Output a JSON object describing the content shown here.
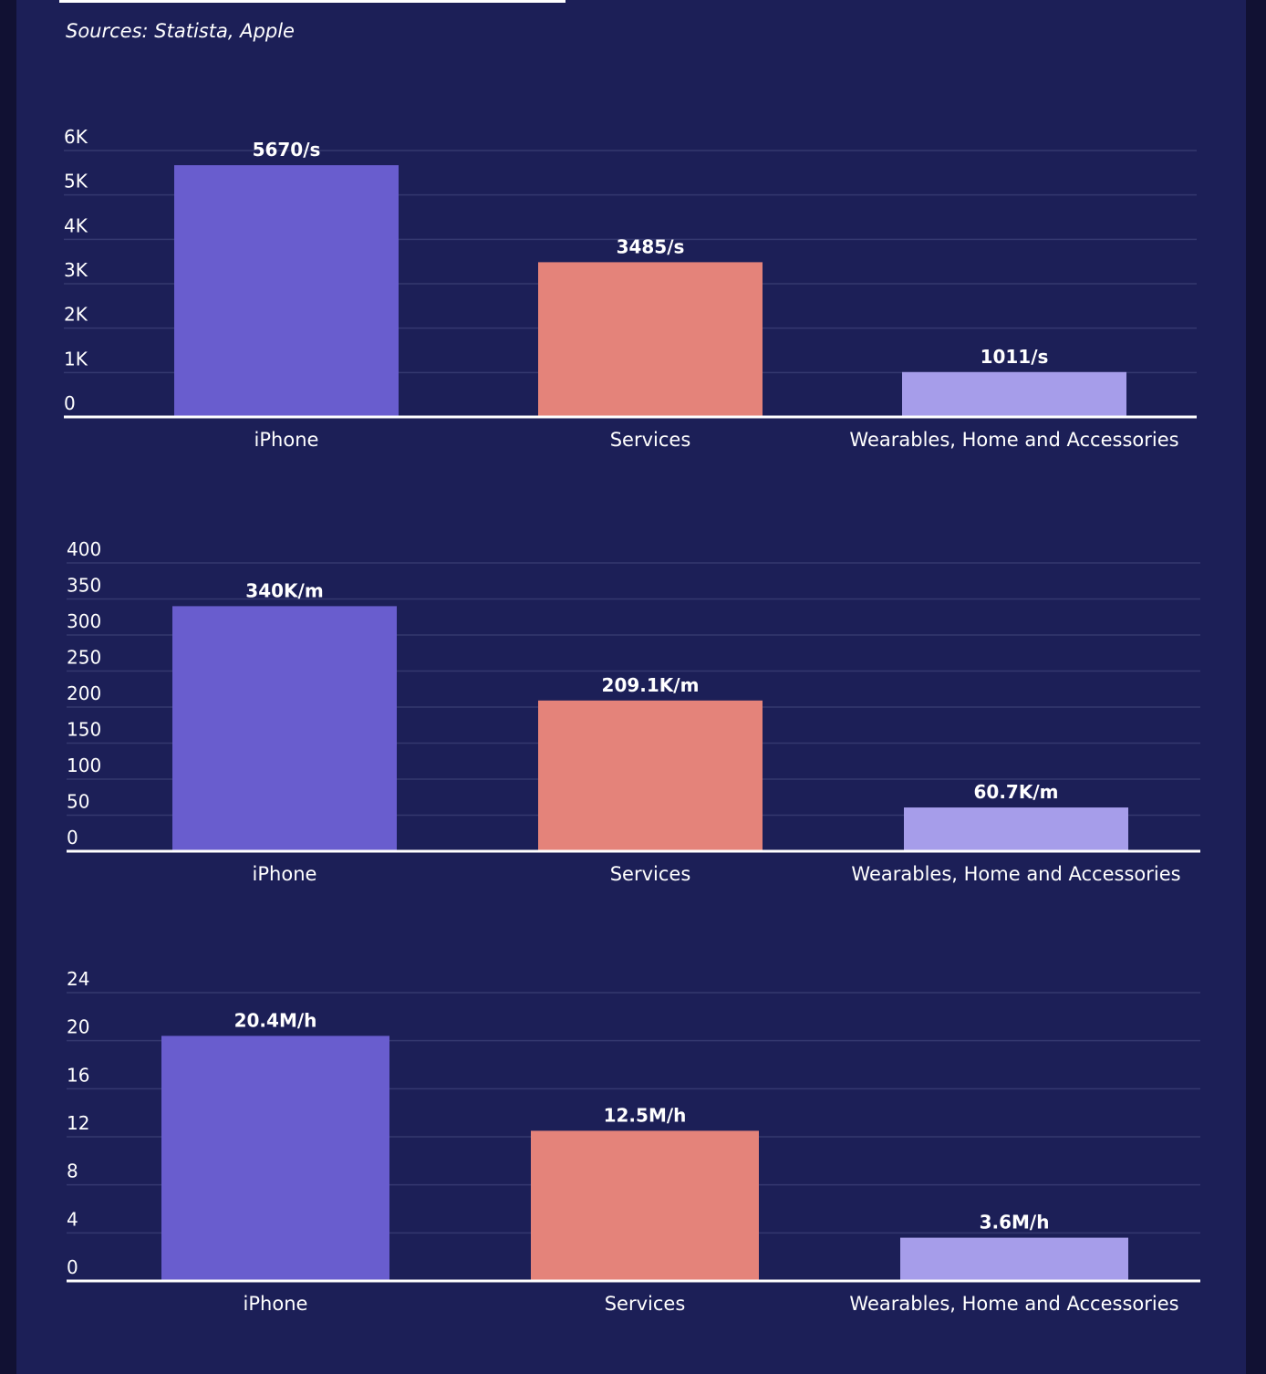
{
  "sources": "Sources: Statista, Apple",
  "colors": {
    "background": "#1c1f57",
    "iphone": "#695dce",
    "services": "#e4837a",
    "wearables": "#a69dea"
  },
  "chart_data": [
    {
      "type": "bar",
      "categories": [
        "iPhone",
        "Services",
        "Wearables, Home and Accessories"
      ],
      "values": [
        5670,
        3485,
        1011
      ],
      "data_labels": [
        "5670/s",
        "3485/s",
        "1011/s"
      ],
      "yticks": [
        0,
        1000,
        2000,
        3000,
        4000,
        5000,
        6000
      ],
      "ytick_labels": [
        "0",
        "1K",
        "2K",
        "3K",
        "4K",
        "5K",
        "6K"
      ],
      "ylim": [
        0,
        6000
      ],
      "title": "",
      "xlabel": "",
      "ylabel": ""
    },
    {
      "type": "bar",
      "categories": [
        "iPhone",
        "Services",
        "Wearables, Home and Accessories"
      ],
      "values": [
        340,
        209.1,
        60.7
      ],
      "data_labels": [
        "340K/m",
        "209.1K/m",
        "60.7K/m"
      ],
      "yticks": [
        0,
        50,
        100,
        150,
        200,
        250,
        300,
        350,
        400
      ],
      "ytick_labels": [
        "0",
        "50",
        "100",
        "150",
        "200",
        "250",
        "300",
        "350",
        "400"
      ],
      "ylim": [
        0,
        400
      ],
      "title": "",
      "xlabel": "",
      "ylabel": ""
    },
    {
      "type": "bar",
      "categories": [
        "iPhone",
        "Services",
        "Wearables, Home and Accessories"
      ],
      "values": [
        20.4,
        12.5,
        3.6
      ],
      "data_labels": [
        "20.4M/h",
        "12.5M/h",
        "3.6M/h"
      ],
      "yticks": [
        0,
        4,
        8,
        12,
        16,
        20,
        24
      ],
      "ytick_labels": [
        "0",
        "4",
        "8",
        "12",
        "16",
        "20",
        "24"
      ],
      "ylim": [
        0,
        24
      ],
      "title": "",
      "xlabel": "",
      "ylabel": ""
    }
  ]
}
